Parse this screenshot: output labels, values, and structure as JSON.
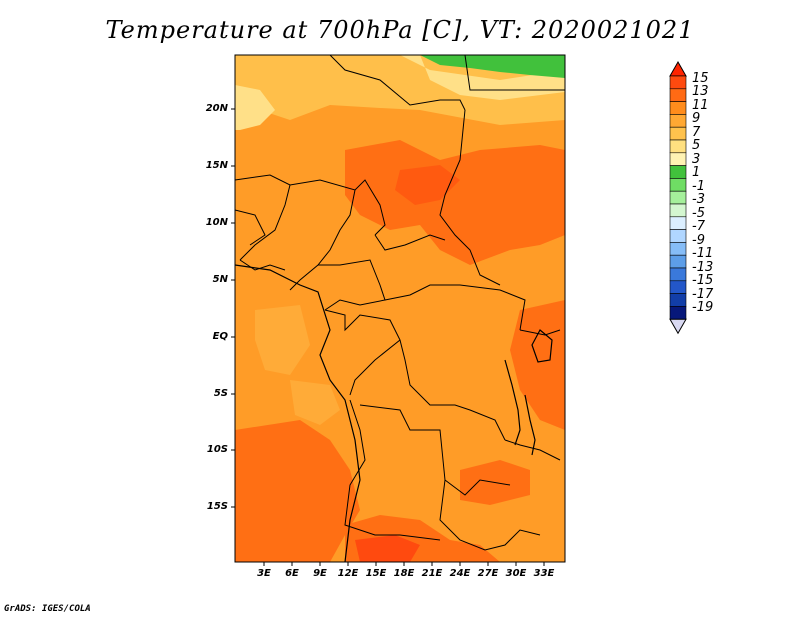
{
  "title": "Temperature at 700hPa [C], VT: 2020021021",
  "credit": "GrADS: IGES/COLA",
  "map": {
    "lat_labels": [
      "20N",
      "15N",
      "10N",
      "5N",
      "EQ",
      "5S",
      "10S",
      "15S"
    ],
    "lon_labels": [
      "3E",
      "6E",
      "9E",
      "12E",
      "15E",
      "18E",
      "21E",
      "24E",
      "27E",
      "30E",
      "33E"
    ]
  },
  "colorbar": {
    "labels": [
      "15",
      "13",
      "11",
      "9",
      "7",
      "5",
      "3",
      "1",
      "-1",
      "-3",
      "-5",
      "-7",
      "-9",
      "-11",
      "-13",
      "-15",
      "-17",
      "-19"
    ],
    "colors": [
      "#ff2400",
      "#ff4a0f",
      "#ff6a14",
      "#ff8c1c",
      "#ffa833",
      "#ffc24d",
      "#ffe080",
      "#fff3b3",
      "#41c13c",
      "#6fdd64",
      "#a5f09b",
      "#d4f7d0",
      "#dcefff",
      "#b0d6ff",
      "#86bdf7",
      "#5d9ee8",
      "#3a79db",
      "#2357c9",
      "#123ea8",
      "#07187a",
      "#d9d9f2"
    ]
  },
  "colors": {
    "warm_base": "#ff9c27",
    "hot": "#ff6f14",
    "hottest": "#ff4a0f",
    "light": "#ffbf4a",
    "pale": "#ffe088",
    "green": "#41c13c"
  }
}
